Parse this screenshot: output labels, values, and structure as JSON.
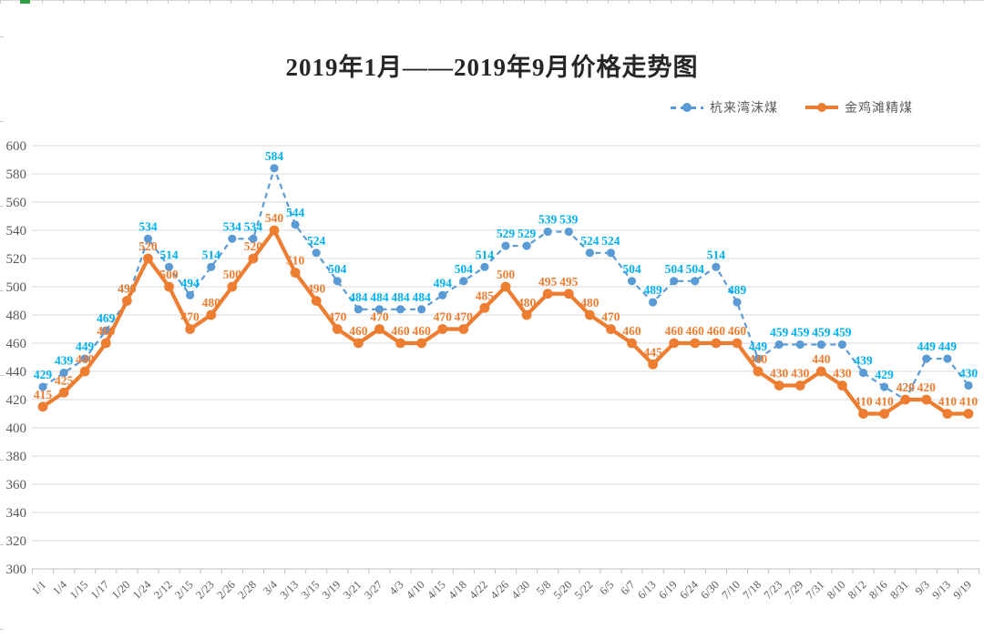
{
  "chart_data": {
    "type": "line",
    "title": "2019年1月——2019年9月价格走势图",
    "categories": [
      "1/1",
      "1/4",
      "1/15",
      "1/17",
      "1/20",
      "1/24",
      "2/12",
      "2/15",
      "2/23",
      "2/26",
      "2/28",
      "3/4",
      "3/13",
      "3/15",
      "3/19",
      "3/21",
      "3/27",
      "4/3",
      "4/10",
      "4/15",
      "4/18",
      "4/22",
      "4/26",
      "4/30",
      "5/8",
      "5/20",
      "5/22",
      "6/5",
      "6/7",
      "6/13",
      "6/19",
      "6/24",
      "6/30",
      "7/10",
      "7/18",
      "7/23",
      "7/29",
      "7/31",
      "8/10",
      "8/12",
      "8/16",
      "8/31",
      "9/3",
      "9/13",
      "9/19"
    ],
    "series": [
      {
        "name": "杭来湾沫煤",
        "style": "dashed",
        "color": "#5B9BD5",
        "label_color": "#00B0F0",
        "values": [
          429,
          439,
          449,
          469,
          490,
          534,
          514,
          494,
          514,
          534,
          534,
          584,
          544,
          524,
          504,
          484,
          484,
          484,
          484,
          494,
          504,
          514,
          529,
          529,
          539,
          539,
          524,
          524,
          504,
          489,
          504,
          504,
          514,
          489,
          449,
          459,
          459,
          459,
          459,
          439,
          429,
          420,
          449,
          449,
          430
        ]
      },
      {
        "name": "金鸡滩精煤",
        "style": "solid",
        "color": "#ED7D31",
        "label_color": "#ED7D31",
        "values": [
          415,
          425,
          440,
          460,
          490,
          520,
          500,
          470,
          480,
          500,
          520,
          540,
          510,
          490,
          470,
          460,
          470,
          460,
          460,
          470,
          470,
          485,
          500,
          480,
          495,
          495,
          480,
          470,
          460,
          445,
          460,
          460,
          460,
          460,
          440,
          430,
          430,
          440,
          430,
          410,
          410,
          420,
          420,
          410,
          410
        ]
      }
    ],
    "ylim": [
      300,
      600
    ],
    "ytick_step": 20,
    "grid": true,
    "legend_position": "top-right",
    "axis_label_color": "#595959",
    "gridline_color": "#d9d9d9",
    "axis_line_color": "#bfbfbf"
  }
}
